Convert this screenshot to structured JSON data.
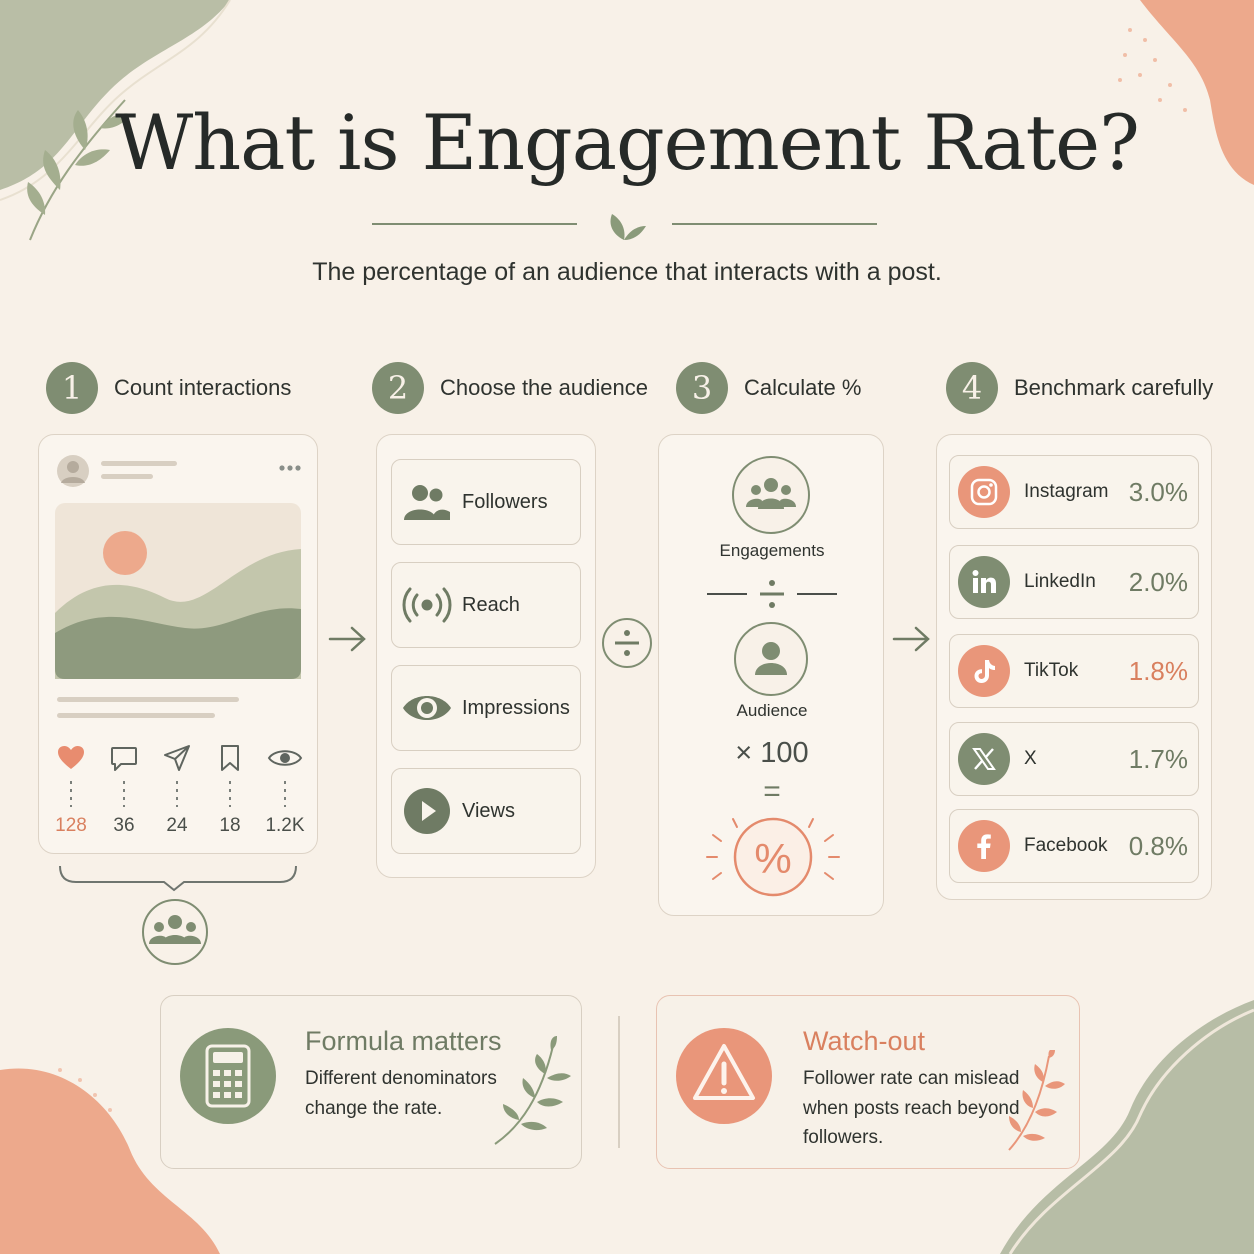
{
  "header": {
    "title": "What is Engagement Rate?",
    "subtitle": "The percentage of an audience that interacts with a post."
  },
  "steps": [
    {
      "number": "1",
      "title": "Count interactions"
    },
    {
      "number": "2",
      "title": "Choose the audience"
    },
    {
      "number": "3",
      "title": "Calculate %"
    },
    {
      "number": "4",
      "title": "Benchmark carefully"
    }
  ],
  "post": {
    "stats": [
      {
        "icon": "heart-icon",
        "value": "128"
      },
      {
        "icon": "comment-icon",
        "value": "36"
      },
      {
        "icon": "share-icon",
        "value": "24"
      },
      {
        "icon": "bookmark-icon",
        "value": "18"
      },
      {
        "icon": "eye-icon",
        "value": "1.2K"
      }
    ]
  },
  "audience_options": [
    {
      "icon": "people-icon",
      "label": "Followers"
    },
    {
      "icon": "broadcast-icon",
      "label": "Reach"
    },
    {
      "icon": "eye-icon",
      "label": "Impressions"
    },
    {
      "icon": "play-icon",
      "label": "Views"
    }
  ],
  "calculation": {
    "numerator": "Engagements",
    "denominator": "Audience",
    "multiplier": "× 100",
    "equals": "=",
    "result": "%"
  },
  "benchmarks": [
    {
      "platform": "Instagram",
      "value": "3.0%",
      "icon": "instagram-icon",
      "accent": "#e9967a",
      "value_color": "#6f7b64"
    },
    {
      "platform": "LinkedIn",
      "value": "2.0%",
      "icon": "linkedin-icon",
      "accent": "#7f8d72",
      "value_color": "#6f7b64"
    },
    {
      "platform": "TikTok",
      "value": "1.8%",
      "icon": "tiktok-icon",
      "accent": "#e9967a",
      "value_color": "#d9805f"
    },
    {
      "platform": "X",
      "value": "1.7%",
      "icon": "x-icon",
      "accent": "#7f8d72",
      "value_color": "#6f7b64"
    },
    {
      "platform": "Facebook",
      "value": "0.8%",
      "icon": "facebook-icon",
      "accent": "#e9967a",
      "value_color": "#6f7b64"
    }
  ],
  "notes": [
    {
      "title": "Formula matters",
      "lines": [
        "Different denominators",
        "change the rate."
      ],
      "icon": "calculator-icon"
    },
    {
      "title": "Watch-out",
      "lines": [
        "Follower rate can mislead",
        "when posts reach beyond",
        "followers."
      ],
      "icon": "warning-icon"
    }
  ],
  "colors": {
    "background": "#f8f1e8",
    "sage": "#7f8d72",
    "coral": "#e9967a",
    "text": "#2b2f2c"
  }
}
